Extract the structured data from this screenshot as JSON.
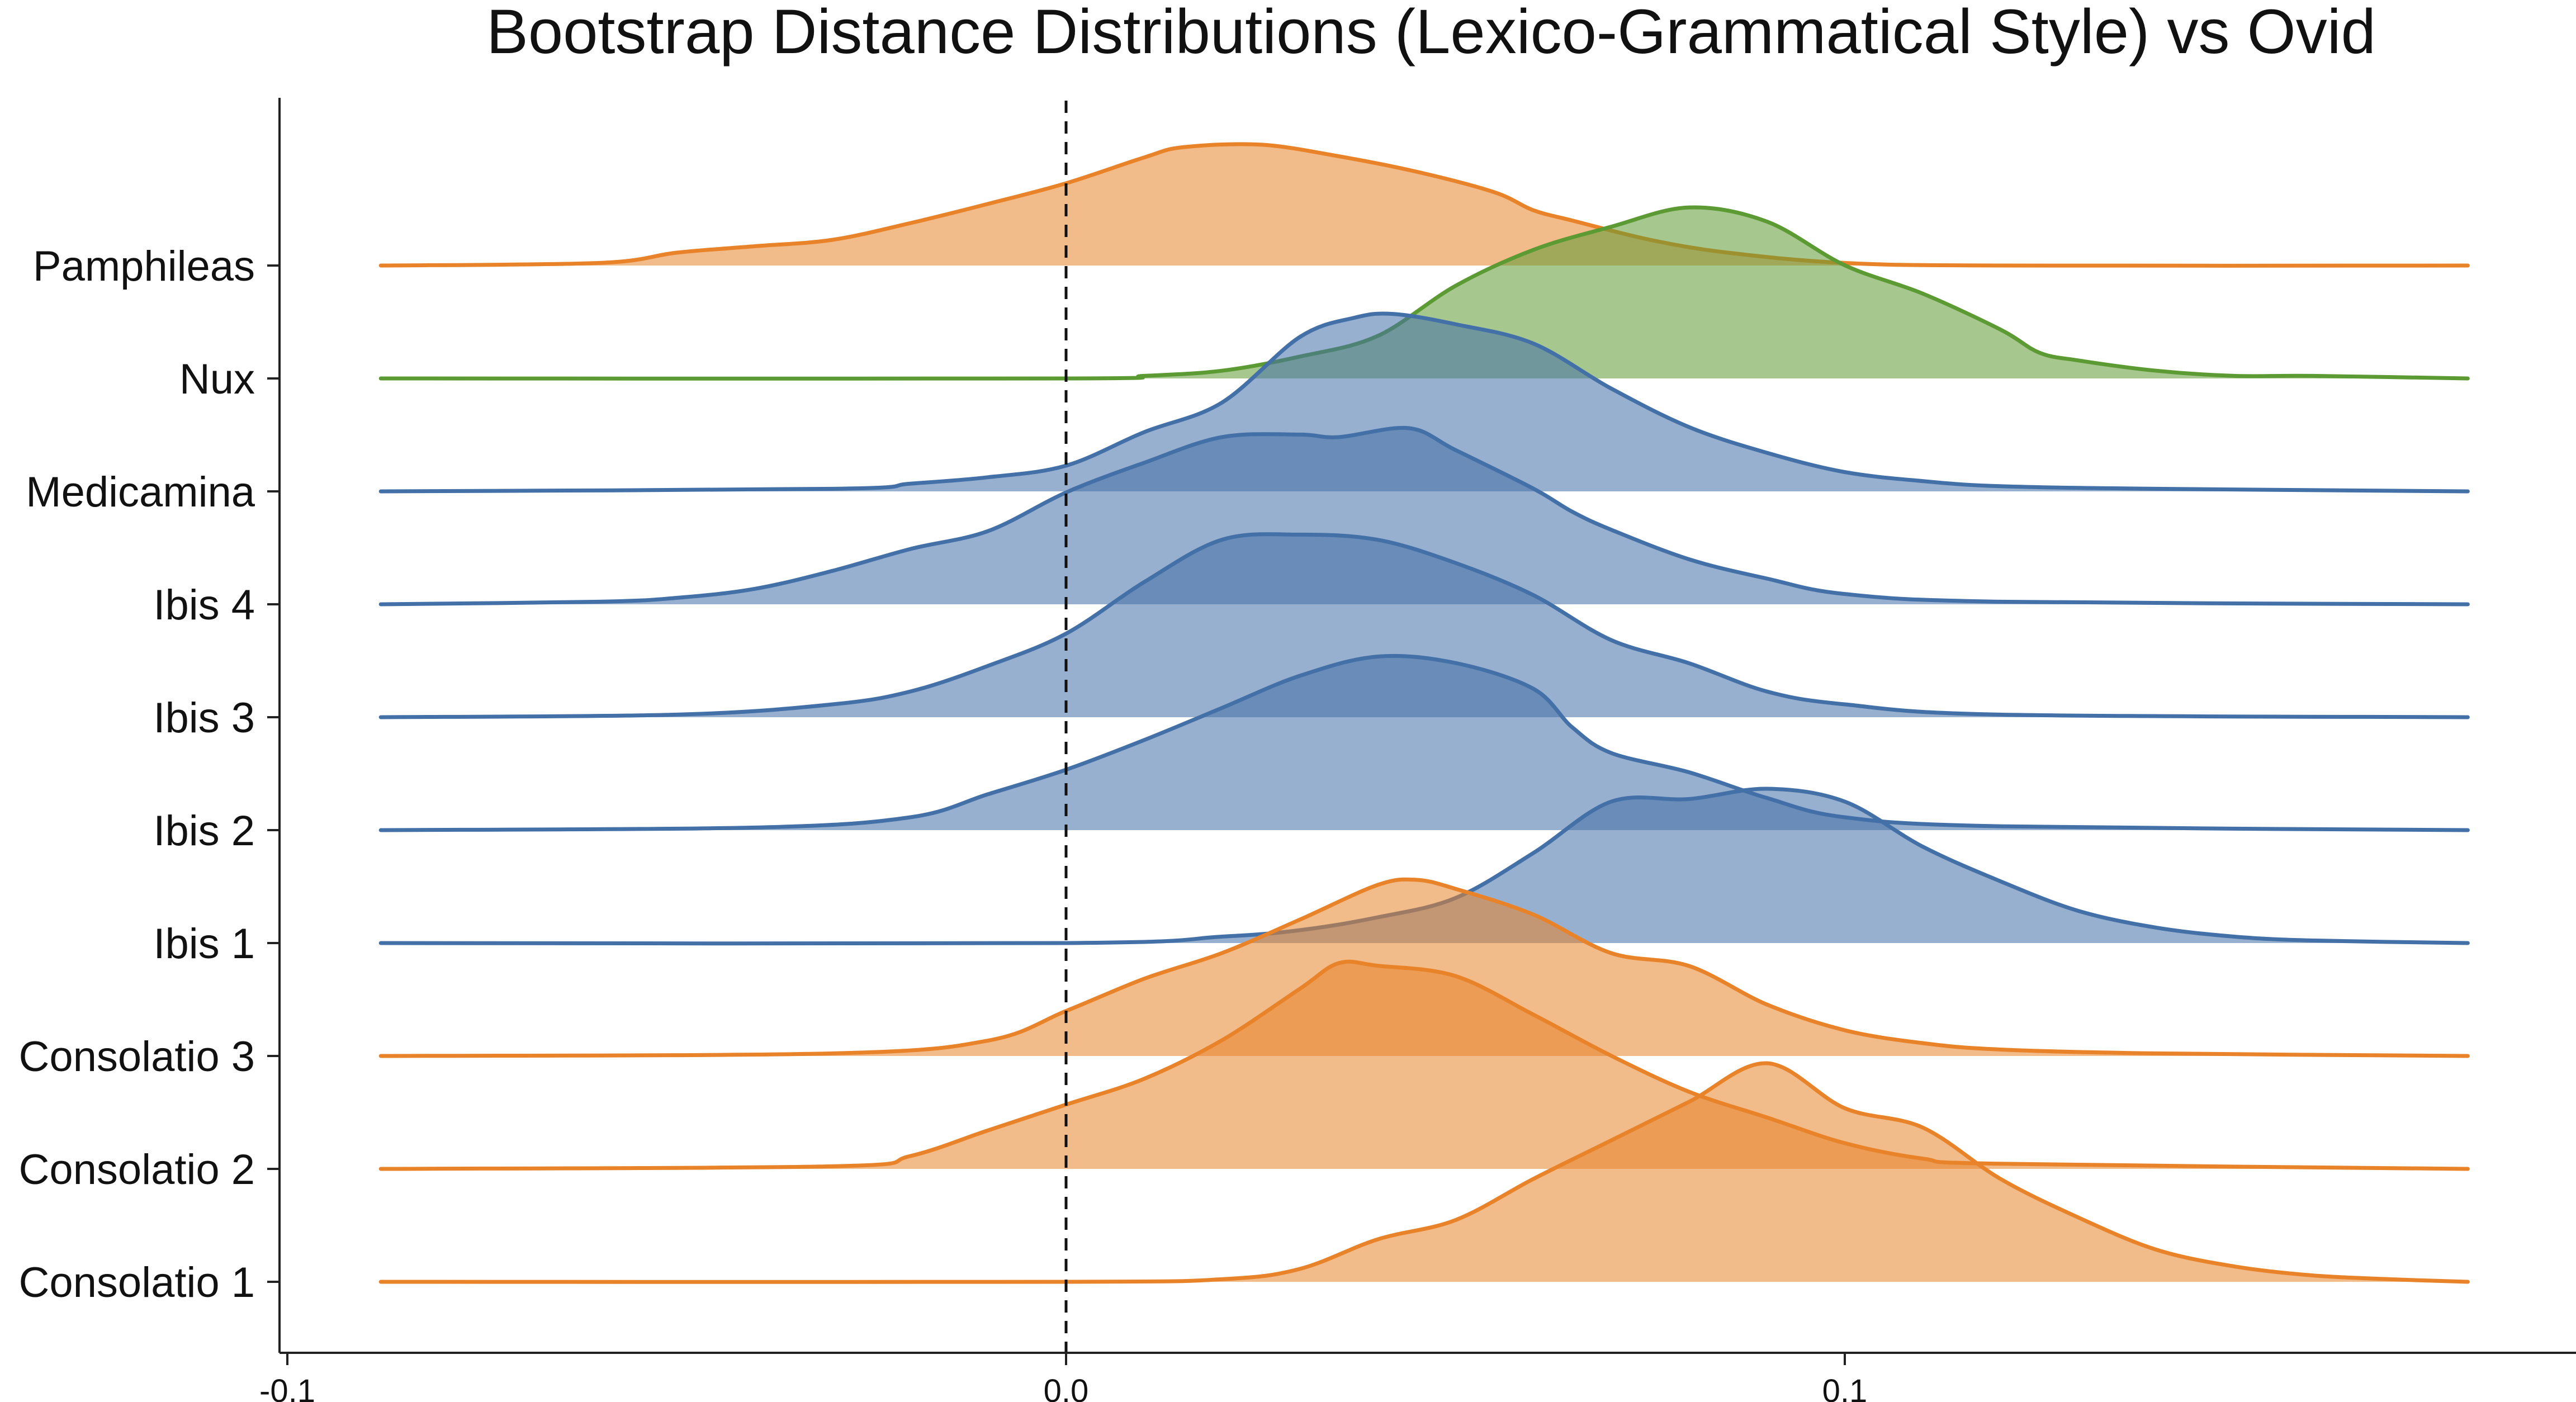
{
  "chart_data": {
    "type": "area",
    "subtype": "ridgeline-density",
    "title": "Bootstrap Distance Distributions (Lexico-Grammatical Style) vs Ovid",
    "xlabel": "",
    "ylabel": "",
    "xlim": [
      -0.1,
      0.19
    ],
    "x_ticks": [
      -0.1,
      0.0,
      0.1
    ],
    "x_tick_labels": [
      "-0.1",
      "0.0",
      "0.1"
    ],
    "x_domain": [
      -0.088,
      0.18
    ],
    "reference_line": {
      "x": 0.0,
      "style": "dashed"
    },
    "grid": false,
    "legend": "none",
    "colors": {
      "orange": "#E8832A",
      "green": "#5C9A33",
      "blue": "#4470A8"
    },
    "series": [
      {
        "label": "Pamphileas",
        "color": "#E8832A",
        "points": [
          [
            -0.088,
            0
          ],
          [
            -0.06,
            0.02
          ],
          [
            -0.05,
            0.1
          ],
          [
            -0.04,
            0.15
          ],
          [
            -0.03,
            0.2
          ],
          [
            -0.02,
            0.33
          ],
          [
            -0.01,
            0.48
          ],
          [
            0.0,
            0.64
          ],
          [
            0.01,
            0.84
          ],
          [
            0.015,
            0.92
          ],
          [
            0.025,
            0.94
          ],
          [
            0.035,
            0.85
          ],
          [
            0.045,
            0.73
          ],
          [
            0.055,
            0.57
          ],
          [
            0.06,
            0.43
          ],
          [
            0.065,
            0.35
          ],
          [
            0.075,
            0.2
          ],
          [
            0.085,
            0.1
          ],
          [
            0.1,
            0.02
          ],
          [
            0.12,
            0
          ],
          [
            0.18,
            0
          ]
        ]
      },
      {
        "label": "Nux",
        "color": "#5C9A33",
        "points": [
          [
            -0.088,
            0
          ],
          [
            0.0,
            0
          ],
          [
            0.01,
            0.02
          ],
          [
            0.02,
            0.06
          ],
          [
            0.03,
            0.17
          ],
          [
            0.04,
            0.33
          ],
          [
            0.05,
            0.72
          ],
          [
            0.06,
            1.0
          ],
          [
            0.07,
            1.18
          ],
          [
            0.08,
            1.33
          ],
          [
            0.09,
            1.22
          ],
          [
            0.1,
            0.88
          ],
          [
            0.11,
            0.66
          ],
          [
            0.12,
            0.38
          ],
          [
            0.125,
            0.2
          ],
          [
            0.13,
            0.14
          ],
          [
            0.14,
            0.06
          ],
          [
            0.15,
            0.02
          ],
          [
            0.16,
            0.02
          ],
          [
            0.18,
            0
          ]
        ]
      },
      {
        "label": "Medicamina",
        "color": "#4470A8",
        "points": [
          [
            -0.088,
            0
          ],
          [
            -0.03,
            0.02
          ],
          [
            -0.02,
            0.06
          ],
          [
            -0.01,
            0.11
          ],
          [
            0.0,
            0.2
          ],
          [
            0.01,
            0.46
          ],
          [
            0.02,
            0.69
          ],
          [
            0.03,
            1.2
          ],
          [
            0.037,
            1.35
          ],
          [
            0.042,
            1.38
          ],
          [
            0.05,
            1.3
          ],
          [
            0.06,
            1.15
          ],
          [
            0.07,
            0.8
          ],
          [
            0.08,
            0.5
          ],
          [
            0.09,
            0.3
          ],
          [
            0.1,
            0.15
          ],
          [
            0.11,
            0.08
          ],
          [
            0.12,
            0.04
          ],
          [
            0.14,
            0.02
          ],
          [
            0.18,
            0
          ]
        ]
      },
      {
        "label": "Ibis 4",
        "color": "#4470A8",
        "points": [
          [
            -0.088,
            0
          ],
          [
            -0.06,
            0.02
          ],
          [
            -0.05,
            0.05
          ],
          [
            -0.04,
            0.12
          ],
          [
            -0.03,
            0.26
          ],
          [
            -0.02,
            0.43
          ],
          [
            -0.01,
            0.57
          ],
          [
            0.0,
            0.87
          ],
          [
            0.01,
            1.1
          ],
          [
            0.02,
            1.3
          ],
          [
            0.03,
            1.32
          ],
          [
            0.035,
            1.3
          ],
          [
            0.044,
            1.37
          ],
          [
            0.05,
            1.2
          ],
          [
            0.06,
            0.9
          ],
          [
            0.065,
            0.72
          ],
          [
            0.07,
            0.58
          ],
          [
            0.08,
            0.35
          ],
          [
            0.09,
            0.2
          ],
          [
            0.1,
            0.08
          ],
          [
            0.12,
            0.02
          ],
          [
            0.18,
            0
          ]
        ]
      },
      {
        "label": "Ibis 3",
        "color": "#4470A8",
        "points": [
          [
            -0.088,
            0
          ],
          [
            -0.05,
            0.02
          ],
          [
            -0.03,
            0.1
          ],
          [
            -0.02,
            0.2
          ],
          [
            -0.01,
            0.4
          ],
          [
            0.0,
            0.65
          ],
          [
            0.01,
            1.05
          ],
          [
            0.02,
            1.38
          ],
          [
            0.03,
            1.42
          ],
          [
            0.04,
            1.38
          ],
          [
            0.05,
            1.2
          ],
          [
            0.06,
            0.95
          ],
          [
            0.07,
            0.6
          ],
          [
            0.08,
            0.42
          ],
          [
            0.09,
            0.2
          ],
          [
            0.1,
            0.1
          ],
          [
            0.12,
            0.02
          ],
          [
            0.18,
            0
          ]
        ]
      },
      {
        "label": "Ibis 2",
        "color": "#4470A8",
        "points": [
          [
            -0.088,
            0
          ],
          [
            -0.04,
            0.02
          ],
          [
            -0.02,
            0.1
          ],
          [
            -0.01,
            0.28
          ],
          [
            0.0,
            0.47
          ],
          [
            0.01,
            0.7
          ],
          [
            0.02,
            0.95
          ],
          [
            0.03,
            1.2
          ],
          [
            0.04,
            1.35
          ],
          [
            0.05,
            1.3
          ],
          [
            0.06,
            1.1
          ],
          [
            0.065,
            0.8
          ],
          [
            0.07,
            0.6
          ],
          [
            0.08,
            0.45
          ],
          [
            0.09,
            0.25
          ],
          [
            0.1,
            0.1
          ],
          [
            0.12,
            0.03
          ],
          [
            0.18,
            0
          ]
        ]
      },
      {
        "label": "Ibis 1",
        "color": "#4470A8",
        "points": [
          [
            -0.088,
            0
          ],
          [
            0.0,
            0
          ],
          [
            0.02,
            0.05
          ],
          [
            0.03,
            0.1
          ],
          [
            0.04,
            0.2
          ],
          [
            0.05,
            0.35
          ],
          [
            0.06,
            0.7
          ],
          [
            0.07,
            1.1
          ],
          [
            0.08,
            1.12
          ],
          [
            0.09,
            1.2
          ],
          [
            0.1,
            1.1
          ],
          [
            0.11,
            0.75
          ],
          [
            0.12,
            0.48
          ],
          [
            0.13,
            0.25
          ],
          [
            0.14,
            0.12
          ],
          [
            0.15,
            0.05
          ],
          [
            0.16,
            0.02
          ],
          [
            0.18,
            0
          ]
        ]
      },
      {
        "label": "Consolatio 3",
        "color": "#E8832A",
        "points": [
          [
            -0.088,
            0
          ],
          [
            -0.03,
            0.02
          ],
          [
            -0.01,
            0.12
          ],
          [
            0.0,
            0.35
          ],
          [
            0.01,
            0.6
          ],
          [
            0.02,
            0.8
          ],
          [
            0.03,
            1.06
          ],
          [
            0.04,
            1.33
          ],
          [
            0.045,
            1.37
          ],
          [
            0.05,
            1.3
          ],
          [
            0.06,
            1.1
          ],
          [
            0.07,
            0.8
          ],
          [
            0.08,
            0.7
          ],
          [
            0.09,
            0.4
          ],
          [
            0.1,
            0.2
          ],
          [
            0.11,
            0.1
          ],
          [
            0.12,
            0.05
          ],
          [
            0.14,
            0.02
          ],
          [
            0.18,
            0
          ]
        ]
      },
      {
        "label": "Consolatio 2",
        "color": "#E8832A",
        "points": [
          [
            -0.088,
            0
          ],
          [
            -0.03,
            0.02
          ],
          [
            -0.02,
            0.1
          ],
          [
            -0.01,
            0.3
          ],
          [
            0.0,
            0.5
          ],
          [
            0.01,
            0.7
          ],
          [
            0.02,
            1.0
          ],
          [
            0.03,
            1.4
          ],
          [
            0.035,
            1.6
          ],
          [
            0.04,
            1.58
          ],
          [
            0.05,
            1.5
          ],
          [
            0.06,
            1.2
          ],
          [
            0.07,
            0.88
          ],
          [
            0.08,
            0.6
          ],
          [
            0.09,
            0.4
          ],
          [
            0.1,
            0.2
          ],
          [
            0.11,
            0.08
          ],
          [
            0.12,
            0.04
          ],
          [
            0.18,
            0
          ]
        ]
      },
      {
        "label": "Consolatio 1",
        "color": "#E8832A",
        "points": [
          [
            -0.088,
            0
          ],
          [
            0.0,
            0
          ],
          [
            0.02,
            0.02
          ],
          [
            0.03,
            0.1
          ],
          [
            0.04,
            0.33
          ],
          [
            0.05,
            0.48
          ],
          [
            0.06,
            0.8
          ],
          [
            0.07,
            1.1
          ],
          [
            0.08,
            1.4
          ],
          [
            0.09,
            1.7
          ],
          [
            0.1,
            1.35
          ],
          [
            0.11,
            1.2
          ],
          [
            0.12,
            0.8
          ],
          [
            0.13,
            0.5
          ],
          [
            0.14,
            0.25
          ],
          [
            0.15,
            0.12
          ],
          [
            0.16,
            0.05
          ],
          [
            0.17,
            0.02
          ],
          [
            0.18,
            0
          ]
        ]
      }
    ]
  }
}
